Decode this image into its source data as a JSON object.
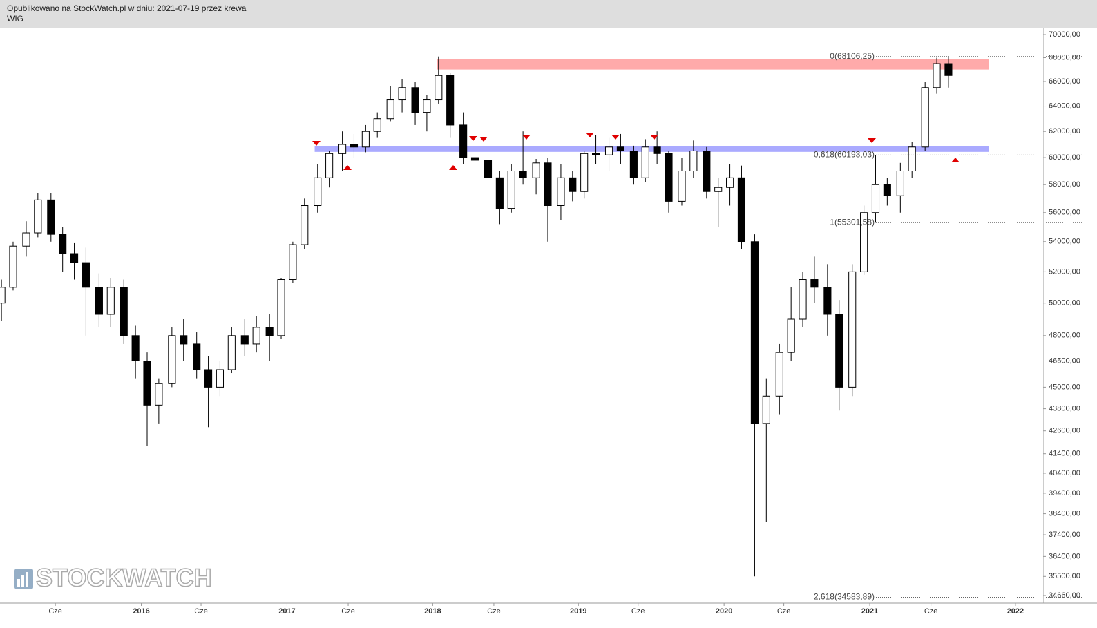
{
  "header": {
    "published": "Opublikowano na StockWatch.pl w dniu: 2021-07-19 przez krewa",
    "symbol": "WIG"
  },
  "chart_data": {
    "type": "candlestick",
    "log": true,
    "watermark": "STOCKWATCH",
    "up_color": "#ffffff",
    "down_color": "#000000",
    "wick_color": "#000000",
    "xlim": [
      2015.03,
      2022.19
    ],
    "ylim": [
      34330,
      70610
    ],
    "xticks": [
      {
        "value": 2015.41,
        "label": "Cze"
      },
      2016,
      {
        "value": 2016.41,
        "label": "Cze"
      },
      2017,
      {
        "value": 2017.42,
        "label": "Cze"
      },
      2018,
      {
        "value": 2018.42,
        "label": "Cze"
      },
      2019,
      {
        "value": 2019.41,
        "label": "Cze"
      },
      2020,
      {
        "value": 2020.41,
        "label": "Cze"
      },
      2021,
      {
        "value": 2021.42,
        "label": "Cze"
      },
      2022
    ],
    "yticks": [
      {
        "value": 70000,
        "label": "70000,00"
      },
      {
        "value": 68000,
        "label": "68000,00"
      },
      {
        "value": 66000,
        "label": "66000,00"
      },
      {
        "value": 64000,
        "label": "64000,00"
      },
      {
        "value": 62000,
        "label": "62000,00"
      },
      {
        "value": 60000,
        "label": "60000,00"
      },
      {
        "value": 58000,
        "label": "58000,00"
      },
      {
        "value": 56000,
        "label": "56000,00"
      },
      {
        "value": 54000,
        "label": "54000,00"
      },
      {
        "value": 52000,
        "label": "52000,00"
      },
      {
        "value": 50000,
        "label": "50000,00"
      },
      {
        "value": 48000,
        "label": "48000,00"
      },
      {
        "value": 46500,
        "label": "46500,00"
      },
      {
        "value": 45000,
        "label": "45000,00"
      },
      {
        "value": 43800,
        "label": "43800,00"
      },
      {
        "value": 42600,
        "label": "42600,00"
      },
      {
        "value": 41400,
        "label": "41400,00"
      },
      {
        "value": 40400,
        "label": "40400,00"
      },
      {
        "value": 39400,
        "label": "39400,00"
      },
      {
        "value": 38400,
        "label": "38400,00"
      },
      {
        "value": 37400,
        "label": "37400,00"
      },
      {
        "value": 36400,
        "label": "36400,00"
      },
      {
        "value": 35500,
        "label": "35500,00"
      },
      {
        "value": 34660,
        "label": "34660,00"
      }
    ],
    "fib_levels": [
      {
        "value": 68106.25,
        "label": "0(68106,25)"
      },
      {
        "value": 60193.03,
        "label": "0,618(60193,03)"
      },
      {
        "value": 55301.58,
        "label": "1(55301,58)"
      },
      {
        "value": 34583.89,
        "label": "2,618(34583,89)"
      }
    ],
    "zones": [
      {
        "color": "#ffaaaa",
        "x": [
          2018.03,
          2021.82
        ],
        "y": [
          67000,
          67900
        ]
      },
      {
        "color": "#aaaaff",
        "x": [
          2017.19,
          2021.82
        ],
        "y": [
          60430,
          60850
        ]
      }
    ],
    "x": [
      2015.04,
      2015.12,
      2015.21,
      2015.29,
      2015.38,
      2015.46,
      2015.54,
      2015.62,
      2015.71,
      2015.79,
      2015.88,
      2015.96,
      2016.04,
      2016.12,
      2016.21,
      2016.29,
      2016.38,
      2016.46,
      2016.54,
      2016.62,
      2016.71,
      2016.79,
      2016.88,
      2016.96,
      2017.04,
      2017.12,
      2017.21,
      2017.29,
      2017.38,
      2017.46,
      2017.54,
      2017.62,
      2017.71,
      2017.79,
      2017.88,
      2017.96,
      2018.04,
      2018.12,
      2018.21,
      2018.29,
      2018.38,
      2018.46,
      2018.54,
      2018.62,
      2018.71,
      2018.79,
      2018.88,
      2018.96,
      2019.04,
      2019.12,
      2019.21,
      2019.29,
      2019.38,
      2019.46,
      2019.54,
      2019.62,
      2019.71,
      2019.79,
      2019.88,
      2019.96,
      2020.04,
      2020.12,
      2020.21,
      2020.29,
      2020.38,
      2020.46,
      2020.54,
      2020.62,
      2020.71,
      2020.79,
      2020.88,
      2020.96,
      2021.04,
      2021.12,
      2021.21,
      2021.29,
      2021.38,
      2021.46,
      2021.54
    ],
    "ohlc": [
      [
        50000,
        51500,
        48900,
        51000
      ],
      [
        51000,
        54000,
        50800,
        53700
      ],
      [
        53700,
        55400,
        53000,
        54600
      ],
      [
        54600,
        57400,
        54300,
        56900
      ],
      [
        56900,
        57400,
        54000,
        54500
      ],
      [
        54500,
        55000,
        52000,
        53200
      ],
      [
        53200,
        53900,
        51500,
        52600
      ],
      [
        52600,
        53600,
        48000,
        51000
      ],
      [
        51000,
        51900,
        48500,
        49300
      ],
      [
        49300,
        51600,
        48500,
        51000
      ],
      [
        51000,
        51500,
        47500,
        48000
      ],
      [
        48000,
        48600,
        45500,
        46500
      ],
      [
        46500,
        47000,
        41800,
        44000
      ],
      [
        44000,
        45500,
        43000,
        45200
      ],
      [
        45200,
        48500,
        45000,
        48000
      ],
      [
        48000,
        49000,
        46500,
        47500
      ],
      [
        47500,
        48200,
        45500,
        46000
      ],
      [
        46000,
        46800,
        42800,
        45000
      ],
      [
        45000,
        46500,
        44500,
        46000
      ],
      [
        46000,
        48500,
        45800,
        48000
      ],
      [
        48000,
        49000,
        46800,
        47500
      ],
      [
        47500,
        49200,
        47000,
        48500
      ],
      [
        48500,
        49300,
        46500,
        48000
      ],
      [
        48000,
        51600,
        47800,
        51500
      ],
      [
        51500,
        54000,
        51300,
        53800
      ],
      [
        53800,
        57000,
        53500,
        56500
      ],
      [
        56500,
        59500,
        56000,
        58500
      ],
      [
        58500,
        60500,
        57800,
        60300
      ],
      [
        60300,
        62000,
        59000,
        61000
      ],
      [
        61000,
        61800,
        60000,
        60800
      ],
      [
        60800,
        62500,
        60400,
        62000
      ],
      [
        62000,
        63500,
        61500,
        63000
      ],
      [
        63000,
        65600,
        62800,
        64500
      ],
      [
        64500,
        66200,
        63500,
        65500
      ],
      [
        65500,
        66000,
        62500,
        63500
      ],
      [
        63500,
        64900,
        62000,
        64500
      ],
      [
        64500,
        68106,
        64200,
        66500
      ],
      [
        66500,
        66700,
        61500,
        62500
      ],
      [
        62500,
        63500,
        59500,
        60000
      ],
      [
        60000,
        61500,
        58000,
        59800
      ],
      [
        59800,
        61000,
        57500,
        58500
      ],
      [
        58500,
        59000,
        55200,
        56300
      ],
      [
        56300,
        59500,
        56000,
        59000
      ],
      [
        59000,
        62000,
        58000,
        58500
      ],
      [
        58500,
        59900,
        57300,
        59600
      ],
      [
        59600,
        60000,
        54000,
        56500
      ],
      [
        56500,
        59500,
        55500,
        58500
      ],
      [
        58500,
        59000,
        56800,
        57500
      ],
      [
        57500,
        60500,
        57000,
        60300
      ],
      [
        60300,
        61700,
        59500,
        60200
      ],
      [
        60200,
        61500,
        59000,
        60800
      ],
      [
        60800,
        61800,
        59500,
        60500
      ],
      [
        60500,
        60900,
        58000,
        58500
      ],
      [
        58500,
        61400,
        58200,
        60800
      ],
      [
        60800,
        62000,
        59500,
        60300
      ],
      [
        60300,
        60500,
        56000,
        56800
      ],
      [
        56800,
        60000,
        56500,
        59000
      ],
      [
        59000,
        61300,
        58500,
        60500
      ],
      [
        60500,
        60800,
        57000,
        57500
      ],
      [
        57500,
        58500,
        55000,
        57800
      ],
      [
        57800,
        59500,
        56500,
        58500
      ],
      [
        58500,
        59400,
        53500,
        54000
      ],
      [
        54000,
        54500,
        35500,
        43000
      ],
      [
        43000,
        45500,
        38000,
        44500
      ],
      [
        44500,
        47500,
        43500,
        47000
      ],
      [
        47000,
        51000,
        46500,
        49000
      ],
      [
        49000,
        52000,
        48500,
        51500
      ],
      [
        51500,
        53000,
        50000,
        51000
      ],
      [
        51000,
        52500,
        48000,
        49300
      ],
      [
        49300,
        50200,
        43700,
        45000
      ],
      [
        45000,
        52500,
        44500,
        52000
      ],
      [
        52000,
        56500,
        51800,
        56000
      ],
      [
        56000,
        60200,
        55300,
        58000
      ],
      [
        58000,
        58500,
        56500,
        57200
      ],
      [
        57200,
        59600,
        56000,
        59000
      ],
      [
        59000,
        61200,
        58500,
        60800
      ],
      [
        60800,
        66000,
        60500,
        65500
      ],
      [
        65500,
        68000,
        65000,
        67500
      ],
      [
        67500,
        68106,
        65500,
        66500
      ]
    ]
  }
}
